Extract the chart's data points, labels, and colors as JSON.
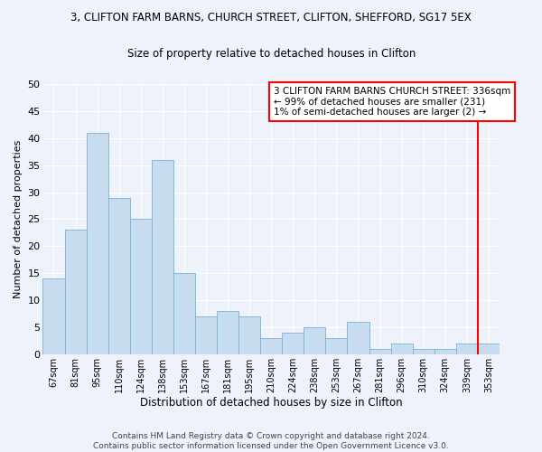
{
  "title": "3, CLIFTON FARM BARNS, CHURCH STREET, CLIFTON, SHEFFORD, SG17 5EX",
  "subtitle": "Size of property relative to detached houses in Clifton",
  "xlabel": "Distribution of detached houses by size in Clifton",
  "ylabel": "Number of detached properties",
  "bar_labels": [
    "67sqm",
    "81sqm",
    "95sqm",
    "110sqm",
    "124sqm",
    "138sqm",
    "153sqm",
    "167sqm",
    "181sqm",
    "195sqm",
    "210sqm",
    "224sqm",
    "238sqm",
    "253sqm",
    "267sqm",
    "281sqm",
    "296sqm",
    "310sqm",
    "324sqm",
    "339sqm",
    "353sqm"
  ],
  "bar_values": [
    14,
    23,
    41,
    29,
    25,
    36,
    15,
    7,
    8,
    7,
    3,
    4,
    5,
    3,
    6,
    1,
    2,
    1,
    1,
    2,
    2
  ],
  "bar_color": "#c8dcf0",
  "bar_edge_color": "#7ab0d8",
  "vline_color": "red",
  "ylim": [
    0,
    50
  ],
  "yticks": [
    0,
    5,
    10,
    15,
    20,
    25,
    30,
    35,
    40,
    45,
    50
  ],
  "legend_title": "3 CLIFTON FARM BARNS CHURCH STREET: 336sqm",
  "legend_line1": "← 99% of detached houses are smaller (231)",
  "legend_line2": "1% of semi-detached houses are larger (2) →",
  "footer_line1": "Contains HM Land Registry data © Crown copyright and database right 2024.",
  "footer_line2": "Contains public sector information licensed under the Open Government Licence v3.0.",
  "background_color": "#eef2fa",
  "plot_bg_color": "#eef2fa",
  "grid_color": "#ffffff"
}
